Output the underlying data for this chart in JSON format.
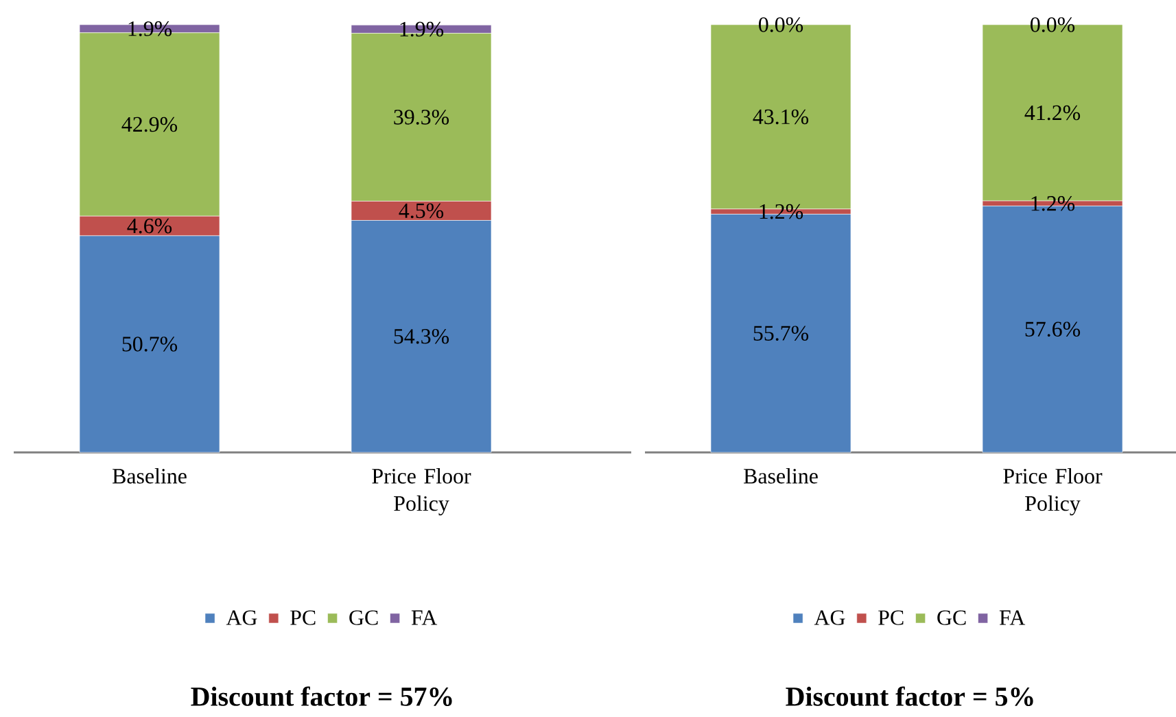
{
  "chart_data": [
    {
      "type": "bar",
      "stacked": true,
      "legend": "bottom",
      "title": "Discount factor = 57%",
      "categories": [
        "Baseline",
        "Price Floor Policy"
      ],
      "series": [
        {
          "name": "AG",
          "color": "#4f81bd",
          "values": [
            50.7,
            54.3
          ],
          "value_labels": [
            "50.7%",
            "54.3%"
          ]
        },
        {
          "name": "PC",
          "color": "#c0504d",
          "values": [
            4.6,
            4.5
          ],
          "value_labels": [
            "4.6%",
            "4.5%"
          ]
        },
        {
          "name": "GC",
          "color": "#9bbb59",
          "values": [
            42.9,
            39.3
          ],
          "value_labels": [
            "42.9%",
            "39.3%"
          ]
        },
        {
          "name": "FA",
          "color": "#8064a2",
          "values": [
            1.9,
            1.9
          ],
          "value_labels": [
            "1.9%",
            "1.9%"
          ]
        }
      ]
    },
    {
      "type": "bar",
      "stacked": true,
      "legend": "bottom",
      "title": "Discount factor = 5%",
      "categories": [
        "Baseline",
        "Price Floor Policy"
      ],
      "series": [
        {
          "name": "AG",
          "color": "#4f81bd",
          "values": [
            55.7,
            57.6
          ],
          "value_labels": [
            "55.7%",
            "57.6%"
          ]
        },
        {
          "name": "PC",
          "color": "#c0504d",
          "values": [
            1.2,
            1.2
          ],
          "value_labels": [
            "1.2%",
            "1.2%"
          ]
        },
        {
          "name": "GC",
          "color": "#9bbb59",
          "values": [
            43.1,
            41.2
          ],
          "value_labels": [
            "43.1%",
            "41.2%"
          ]
        },
        {
          "name": "FA",
          "color": "#8064a2",
          "values": [
            0.0,
            0.0
          ],
          "value_labels": [
            "0.0%",
            "0.0%"
          ]
        }
      ]
    }
  ]
}
